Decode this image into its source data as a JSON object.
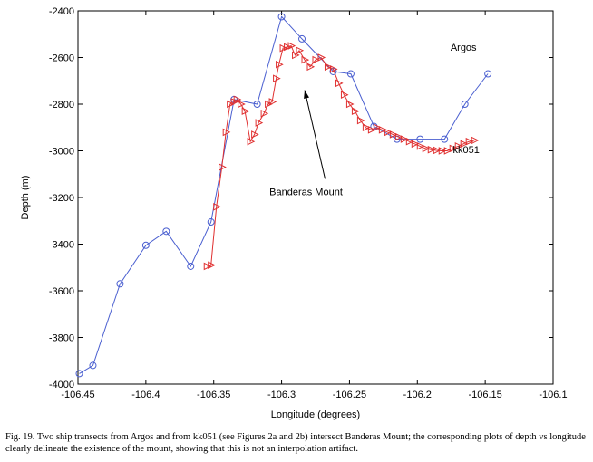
{
  "chart_data": {
    "type": "line",
    "xlabel": "Longitude (degrees)",
    "ylabel": "Depth (m)",
    "xlim": [
      -106.45,
      -106.1
    ],
    "ylim": [
      -4000,
      -2400
    ],
    "x_ticks": [
      -106.45,
      -106.4,
      -106.35,
      -106.3,
      -106.25,
      -106.2,
      -106.15,
      -106.1
    ],
    "x_tick_labels": [
      "-106.45",
      "-106.4",
      "-106.35",
      "-106.3",
      "-106.25",
      "-106.2",
      "-106.15",
      "-106.1"
    ],
    "y_ticks": [
      -4000,
      -3800,
      -3600,
      -3400,
      -3200,
      -3000,
      -2800,
      -2600,
      -2400
    ],
    "y_tick_labels": [
      "-4000",
      "-3800",
      "-3600",
      "-3400",
      "-3200",
      "-3000",
      "-2800",
      "-2600",
      "-2400"
    ],
    "grid": false,
    "series": [
      {
        "name": "Argos",
        "color": "#4a5fd0",
        "marker": "circle",
        "x": [
          -106.449,
          -106.439,
          -106.419,
          -106.4,
          -106.385,
          -106.367,
          -106.352,
          -106.335,
          -106.318,
          -106.3,
          -106.285,
          -106.262,
          -106.249,
          -106.232,
          -106.215,
          -106.198,
          -106.18,
          -106.165,
          -106.148
        ],
        "y": [
          -3955,
          -3920,
          -3570,
          -3405,
          -3345,
          -3495,
          -3305,
          -2780,
          -2800,
          -2425,
          -2520,
          -2660,
          -2670,
          -2895,
          -2950,
          -2950,
          -2950,
          -2800,
          -2670
        ]
      },
      {
        "name": "kk051",
        "color": "#e03030",
        "marker": "triangle-right",
        "x": [
          -106.355,
          -106.352,
          -106.348,
          -106.344,
          -106.341,
          -106.338,
          -106.335,
          -106.333,
          -106.33,
          -106.327,
          -106.323,
          -106.32,
          -106.317,
          -106.313,
          -106.31,
          -106.307,
          -106.304,
          -106.302,
          -106.299,
          -106.296,
          -106.293,
          -106.29,
          -106.287,
          -106.283,
          -106.279,
          -106.275,
          -106.271,
          -106.266,
          -106.262,
          -106.258,
          -106.254,
          -106.25,
          -106.246,
          -106.242,
          -106.238,
          -106.234,
          -106.23,
          -106.226,
          -106.222,
          -106.218,
          -106.214,
          -106.21,
          -106.206,
          -106.202,
          -106.198,
          -106.194,
          -106.19,
          -106.186,
          -106.182,
          -106.178,
          -106.174,
          -106.17,
          -106.166,
          -106.162,
          -106.158
        ],
        "y": [
          -3495,
          -3490,
          -3240,
          -3070,
          -2920,
          -2800,
          -2790,
          -2780,
          -2800,
          -2830,
          -2960,
          -2930,
          -2880,
          -2840,
          -2800,
          -2790,
          -2690,
          -2630,
          -2560,
          -2555,
          -2550,
          -2590,
          -2570,
          -2610,
          -2640,
          -2610,
          -2600,
          -2640,
          -2650,
          -2710,
          -2760,
          -2800,
          -2830,
          -2870,
          -2900,
          -2910,
          -2900,
          -2910,
          -2920,
          -2930,
          -2940,
          -2950,
          -2960,
          -2970,
          -2980,
          -2990,
          -2995,
          -2998,
          -3000,
          -3000,
          -2990,
          -2980,
          -2970,
          -2960,
          -2955
        ]
      }
    ],
    "annotations": [
      {
        "text": "Argos",
        "x": -106.166,
        "y": -2570
      },
      {
        "text": "kk051",
        "x": -106.164,
        "y": -3010
      },
      {
        "text": "Banderas Mount",
        "x": -106.282,
        "y": -3190
      }
    ],
    "arrow": {
      "from": [
        -106.268,
        -3120
      ],
      "to": [
        -106.283,
        -2740
      ]
    }
  },
  "caption": "Fig. 19. Two ship transects from Argos and from kk051 (see Figures 2a and 2b) intersect Banderas Mount; the corresponding plots of depth vs longitude clearly delineate the existence of the mount, showing that this is not an interpolation artifact."
}
